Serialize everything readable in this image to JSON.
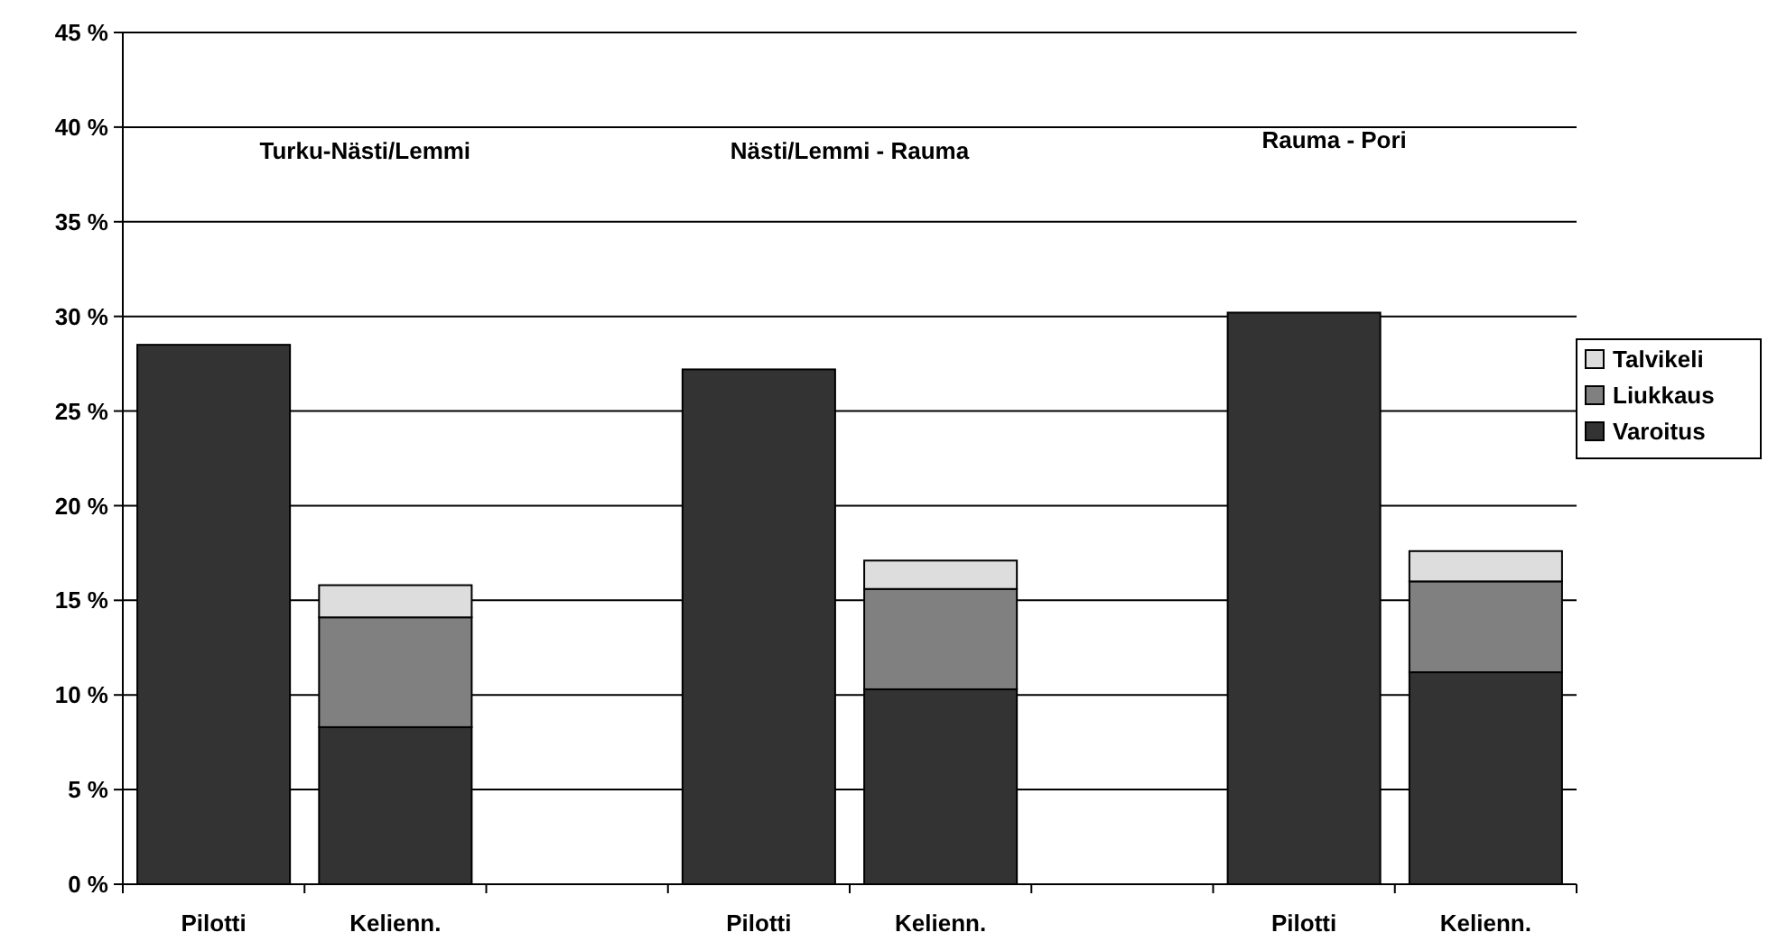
{
  "chart_data": {
    "type": "bar",
    "stacked": true,
    "categories": [
      "Pilotti",
      "Kelienn.",
      null,
      "Pilotti",
      "Kelienn.",
      null,
      "Pilotti",
      "Kelienn."
    ],
    "series": [
      {
        "name": "Varoitus",
        "color": "#333333",
        "values": [
          28.5,
          8.3,
          null,
          27.2,
          10.3,
          null,
          30.2,
          11.2
        ]
      },
      {
        "name": "Liukkaus",
        "color": "#808080",
        "values": [
          null,
          5.8,
          null,
          null,
          5.3,
          null,
          null,
          4.8
        ]
      },
      {
        "name": "Talvikeli",
        "color": "#dddddd",
        "values": [
          null,
          1.7,
          null,
          null,
          1.5,
          null,
          null,
          1.6
        ]
      }
    ],
    "ylim": [
      0,
      45
    ],
    "yticks": [
      {
        "value": 0,
        "label": "0 %"
      },
      {
        "value": 5,
        "label": "5 %"
      },
      {
        "value": 10,
        "label": "10 %"
      },
      {
        "value": 15,
        "label": "15 %"
      },
      {
        "value": 20,
        "label": "20 %"
      },
      {
        "value": 25,
        "label": "25 %"
      },
      {
        "value": 30,
        "label": "30 %"
      },
      {
        "value": 35,
        "label": "35 %"
      },
      {
        "value": 40,
        "label": "40 %"
      },
      {
        "value": 45,
        "label": "45 %"
      }
    ],
    "annotations": [
      "Turku-Nästi/Lemmi",
      "Nästi/Lemmi - Rauma",
      "Rauma - Pori"
    ],
    "grid": "y",
    "legend": "right"
  }
}
